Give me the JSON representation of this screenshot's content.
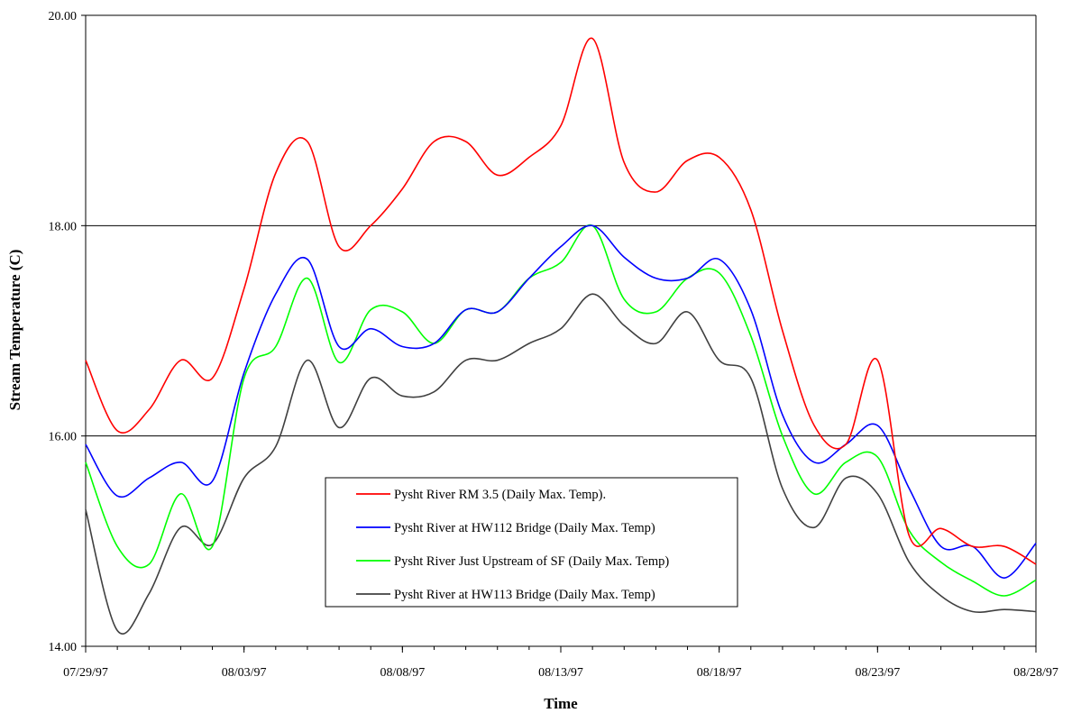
{
  "chart_data": {
    "type": "line",
    "xlabel": "Time",
    "ylabel": "Stream Temperature (C)",
    "ylim": [
      14.0,
      20.0
    ],
    "yticks": [
      "14.00",
      "16.00",
      "18.00",
      "20.00"
    ],
    "ytick_values": [
      14,
      16,
      18,
      20
    ],
    "xlim": [
      "07/29/97",
      "08/28/97"
    ],
    "xticks": [
      "07/29/97",
      "08/03/97",
      "08/08/97",
      "08/13/97",
      "08/18/97",
      "08/23/97",
      "08/28/97"
    ],
    "x": [
      "07/29/97",
      "07/30/97",
      "07/31/97",
      "08/01/97",
      "08/02/97",
      "08/03/97",
      "08/04/97",
      "08/05/97",
      "08/06/97",
      "08/07/97",
      "08/08/97",
      "08/09/97",
      "08/10/97",
      "08/11/97",
      "08/12/97",
      "08/13/97",
      "08/14/97",
      "08/15/97",
      "08/16/97",
      "08/17/97",
      "08/18/97",
      "08/19/97",
      "08/20/97",
      "08/21/97",
      "08/22/97",
      "08/23/97",
      "08/24/97",
      "08/25/97",
      "08/26/97",
      "08/27/97",
      "08/28/97"
    ],
    "grid": "horizontal",
    "legend_position": "bottom-center",
    "series": [
      {
        "name": "Pysht River RM 3.5 (Daily Max. Temp).",
        "color": "#ff0000",
        "values": [
          16.72,
          16.05,
          16.25,
          16.72,
          16.55,
          17.4,
          18.5,
          18.8,
          17.8,
          18.0,
          18.35,
          18.8,
          18.8,
          18.48,
          18.65,
          18.95,
          19.78,
          18.6,
          18.32,
          18.62,
          18.65,
          18.15,
          17.0,
          16.1,
          15.92,
          16.72,
          15.05,
          15.12,
          14.95,
          14.95,
          14.78
        ]
      },
      {
        "name": "Pysht River at HW112 Bridge (Daily Max. Temp)",
        "color": "#0000ff",
        "values": [
          15.92,
          15.43,
          15.6,
          15.75,
          15.57,
          16.6,
          17.35,
          17.68,
          16.85,
          17.02,
          16.85,
          16.88,
          17.2,
          17.18,
          17.5,
          17.8,
          18.0,
          17.7,
          17.5,
          17.5,
          17.68,
          17.2,
          16.2,
          15.75,
          15.92,
          16.1,
          15.5,
          14.95,
          14.95,
          14.65,
          14.98
        ]
      },
      {
        "name": "Pysht River Just Upstream of SF (Daily Max. Temp)",
        "color": "#00ff00",
        "values": [
          15.75,
          14.95,
          14.78,
          15.45,
          14.95,
          16.55,
          16.85,
          17.5,
          16.7,
          17.2,
          17.18,
          16.88,
          17.2,
          17.18,
          17.5,
          17.65,
          18.0,
          17.3,
          17.18,
          17.5,
          17.55,
          16.95,
          16.0,
          15.45,
          15.75,
          15.8,
          15.1,
          14.8,
          14.62,
          14.48,
          14.63
        ]
      },
      {
        "name": "Pysht River at HW113 Bridge (Daily Max. Temp)",
        "color": "#404040",
        "values": [
          15.3,
          14.15,
          14.5,
          15.13,
          14.97,
          15.6,
          15.9,
          16.72,
          16.08,
          16.55,
          16.38,
          16.42,
          16.72,
          16.72,
          16.88,
          17.02,
          17.35,
          17.05,
          16.88,
          17.18,
          16.72,
          16.55,
          15.5,
          15.13,
          15.6,
          15.45,
          14.8,
          14.48,
          14.33,
          14.35,
          14.33
        ]
      }
    ]
  }
}
